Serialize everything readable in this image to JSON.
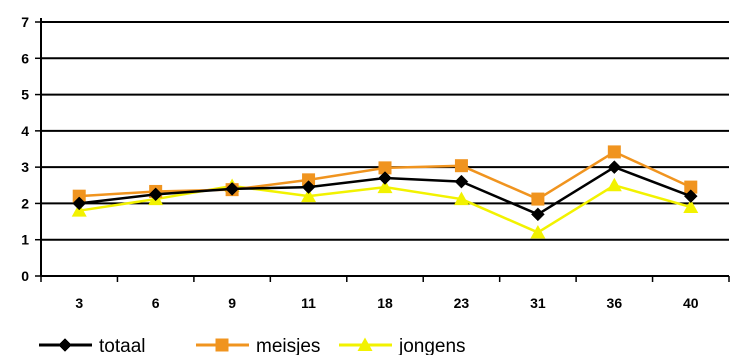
{
  "chart_data": {
    "type": "line",
    "categories": [
      "3",
      "6",
      "9",
      "11",
      "18",
      "23",
      "31",
      "36",
      "40"
    ],
    "ylim": [
      0,
      7
    ],
    "yticks": [
      "0",
      "1",
      "2",
      "3",
      "4",
      "5",
      "6",
      "7"
    ],
    "grid": "horizontal",
    "legend_position": "bottom",
    "series": [
      {
        "name": "totaal",
        "marker": "diamond",
        "color": "#000000",
        "values": [
          2.0,
          2.25,
          2.4,
          2.45,
          2.7,
          2.6,
          1.7,
          3.0,
          2.2
        ]
      },
      {
        "name": "meisjes",
        "marker": "square",
        "color": "#F0941F",
        "values": [
          2.2,
          2.33,
          2.38,
          2.65,
          2.98,
          3.04,
          2.12,
          3.42,
          2.45
        ]
      },
      {
        "name": "jongens",
        "marker": "triangle",
        "color": "#F2F200",
        "values": [
          1.8,
          2.12,
          2.48,
          2.2,
          2.45,
          2.12,
          1.2,
          2.5,
          1.9
        ]
      }
    ]
  }
}
